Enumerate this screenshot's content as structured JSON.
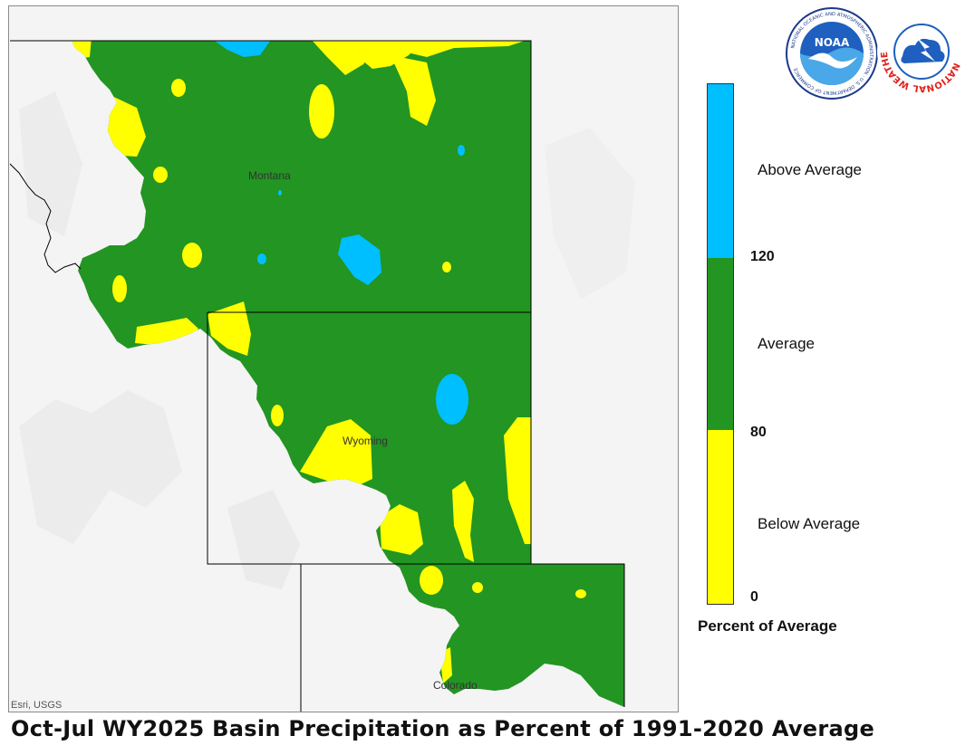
{
  "title": "Oct-Jul WY2025 Basin Precipitation as Percent of 1991-2020 Average",
  "map": {
    "attribution": "Esri, USGS",
    "state_labels": {
      "montana": "Montana",
      "wyoming": "Wyoming",
      "colorado": "Colorado"
    }
  },
  "legend": {
    "title": "Percent of Average",
    "categories": [
      {
        "label": "Above Average",
        "color": "#00BFFF"
      },
      {
        "label": "Average",
        "color": "#229522"
      },
      {
        "label": "Below Average",
        "color": "#FFFF00"
      }
    ],
    "breaks": [
      "120",
      "80",
      "0"
    ]
  },
  "logos": {
    "noaa": {
      "text": "NOAA",
      "ring_text": "NATIONAL OCEANIC AND ATMOSPHERIC ADMINISTRATION · U.S. DEPARTMENT OF COMMERCE"
    },
    "nws": {
      "ring_text": "NATIONAL WEATHER SERVICE"
    }
  },
  "colors": {
    "above": "#00BFFF",
    "average": "#229522",
    "below": "#FFFF00",
    "terrain": "#f4f4f4",
    "boundary": "#000000"
  }
}
